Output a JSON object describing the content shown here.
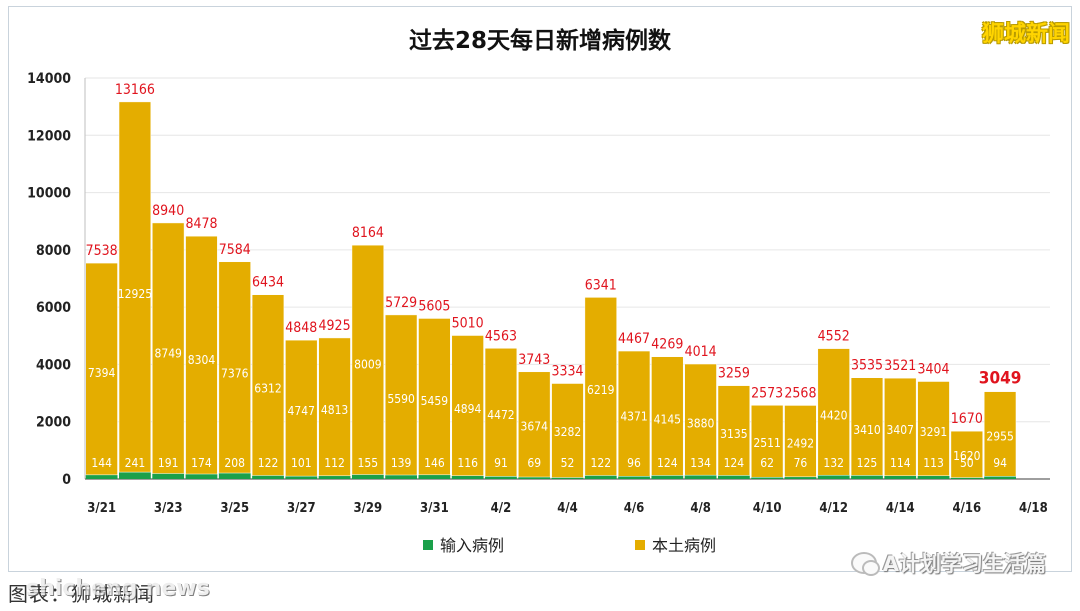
{
  "branding": {
    "outlet": "狮城新闻"
  },
  "footer": {
    "source_text": "图表：狮城新闻",
    "site_watermark": "shicheng.news",
    "wechat_account": "A计划学习生活篇",
    "wechat_icon": "wechat-icon"
  },
  "chart_data": {
    "type": "bar",
    "stacked": true,
    "title": "过去28天每日新增病例数",
    "xlabel": "",
    "ylabel": "",
    "ylim": [
      0,
      14000
    ],
    "yticks": [
      0,
      2000,
      4000,
      6000,
      8000,
      10000,
      12000,
      14000
    ],
    "grid": true,
    "legend_position": "bottom",
    "categories": [
      "3/21",
      "3/22",
      "3/23",
      "3/24",
      "3/25",
      "3/26",
      "3/27",
      "3/28",
      "3/29",
      "3/30",
      "3/31",
      "4/1",
      "4/2",
      "4/3",
      "4/4",
      "4/5",
      "4/6",
      "4/7",
      "4/8",
      "4/9",
      "4/10",
      "4/11",
      "4/12",
      "4/13",
      "4/14",
      "4/15",
      "4/16",
      "4/17",
      "4/18"
    ],
    "xtick_labels": [
      "3/21",
      "3/23",
      "3/25",
      "3/27",
      "3/29",
      "3/31",
      "4/2",
      "4/4",
      "4/6",
      "4/8",
      "4/10",
      "4/12",
      "4/14",
      "4/16",
      "4/18"
    ],
    "series": [
      {
        "name": "输入病例",
        "color": "#1aa04a",
        "values": [
          144,
          241,
          191,
          174,
          208,
          122,
          101,
          112,
          155,
          139,
          146,
          116,
          91,
          69,
          52,
          122,
          96,
          124,
          134,
          124,
          62,
          76,
          132,
          125,
          114,
          113,
          50,
          94,
          null
        ]
      },
      {
        "name": "本土病例",
        "color": "#e4ad00",
        "values": [
          7394,
          12925,
          8749,
          8304,
          7376,
          6312,
          4747,
          4813,
          8009,
          5590,
          5459,
          4894,
          4472,
          3674,
          3282,
          6219,
          4371,
          4145,
          3880,
          3135,
          2511,
          2492,
          4420,
          3410,
          3407,
          3291,
          1620,
          2955,
          null
        ]
      }
    ],
    "totals": [
      7538,
      13166,
      8940,
      8478,
      7584,
      6434,
      4848,
      4925,
      8164,
      5729,
      5605,
      5010,
      4563,
      3743,
      3334,
      6341,
      4467,
      4269,
      4014,
      3259,
      2573,
      2568,
      4552,
      3535,
      3521,
      3404,
      1670,
      3049,
      null
    ],
    "highlight_last_total": true,
    "colors": {
      "total_label": "#e0141e",
      "bar_label": "#ffffff",
      "axis_text": "#222222",
      "grid": "#e6e6e6"
    }
  }
}
